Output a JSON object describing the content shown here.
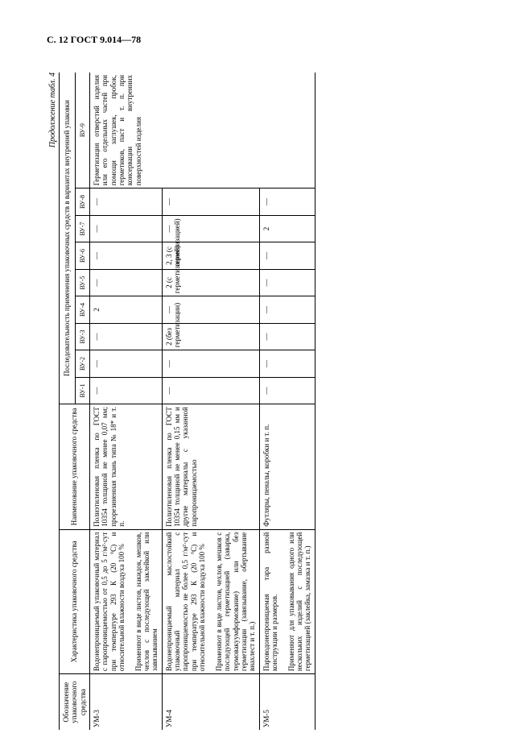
{
  "page_header": "С. 12 ГОСТ 9.014—78",
  "continuation": "Продолжение табл. 4",
  "head": {
    "c1": "Обозначение упаковочного средства",
    "c2": "Характеристика упаковочного средства",
    "c3": "Наименование упаковочного средства",
    "group": "Последовательность применения упаковочных средств в вариантах внутренней упаковки",
    "v1": "ВУ-1",
    "v2": "ВУ-2",
    "v3": "ВУ-3",
    "v4": "ВУ-4",
    "v5": "ВУ-5",
    "v6": "ВУ-6",
    "v7": "ВУ-7",
    "v8": "ВУ-8",
    "v9": "ВУ-9"
  },
  "rows": [
    {
      "code": "УМ-3",
      "char": "Водонепроницаемый упаковочный материал с паропроницаемостью от 0,5 до 5 г/м²·сут при температуре 293 К (20 °С) и относительной влажности воздуха 100 %\n\nПрименяют в виде листов, накидок, мешков, чехлов с последующей заклейкой или завязыванием",
      "name": "Полиэтиленовая пленка по ГОСТ 10354 толщиной не менее 0,07 мм; прорезиненная ткань типа № 18* и т. п.",
      "v": [
        "—",
        "—",
        "—",
        "2",
        "—",
        "—",
        "—",
        "—"
      ],
      "v9": ""
    },
    {
      "code": "УМ-4",
      "char": "Водонепроницаемый маслостойкий упаковочный материал с паропроницаемостью не более 0,5 г/м²·сут при температуре 293 К (20 °С) и относительной влажности воздуха 100 %\n\nПрименяют в виде листов, чехлов, мешков с последующей герметизацией (заварка, термовакуумформование) или без герметизации (завязывание, обертывание внахлест и т. п.)",
      "name": "Полиэтиленовая пленка по ГОСТ 10354 толщиной не менее 0,15 мм и другие материалы с указанной паропроницаемостью",
      "v": [
        "—",
        "—",
        "2 (без герметизации)",
        "—",
        "2 (с герметизацией)",
        "2, 3 (с герметизацией)",
        "—",
        "—"
      ],
      "v9": "Герметизация отверстий изделия или его отдельных частей при помощи заглушек, пробок, герметиков, паст и т. п. при консервации внутренних поверхностей изделия"
    },
    {
      "code": "УМ-5",
      "char": "Пароводонепроницаемая тара разной конструкции и размеров.\n\nПрименяют для упаковывания одного или нескольких изделий с последующей герметизацией (заклейка, замазка и т. п.)",
      "name": "Футляры, пеналы, коробки и т. п.",
      "v": [
        "—",
        "—",
        "—",
        "—",
        "—",
        "—",
        "2",
        "—"
      ],
      "v9": ""
    }
  ]
}
